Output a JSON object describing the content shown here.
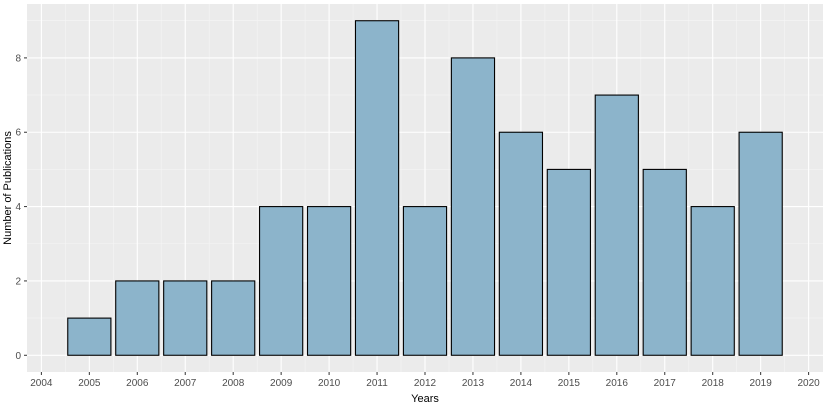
{
  "chart_data": {
    "type": "bar",
    "xlabel": "Years",
    "ylabel": "Number of Publications",
    "x": [
      2005,
      2006,
      2007,
      2008,
      2009,
      2010,
      2011,
      2012,
      2013,
      2014,
      2015,
      2016,
      2017,
      2018,
      2019
    ],
    "values": [
      1,
      2,
      2,
      2,
      4,
      4,
      9,
      4,
      8,
      6,
      5,
      7,
      5,
      4,
      6
    ],
    "xlim": [
      2003.7,
      2020.3
    ],
    "ylim": [
      -0.45,
      9.45
    ],
    "x_ticks": [
      "2004",
      "2005",
      "2006",
      "2007",
      "2008",
      "2009",
      "2010",
      "2011",
      "2012",
      "2013",
      "2014",
      "2015",
      "2016",
      "2017",
      "2018",
      "2019",
      "2020"
    ],
    "y_ticks": [
      "0",
      "2",
      "4",
      "6",
      "8"
    ],
    "grid": true,
    "colors": {
      "bar_fill": "#8cb4cb",
      "bar_stroke": "#000000",
      "panel_background": "#ebebeb",
      "grid_major": "#ffffff",
      "grid_minor": "#f5f5f5"
    }
  }
}
